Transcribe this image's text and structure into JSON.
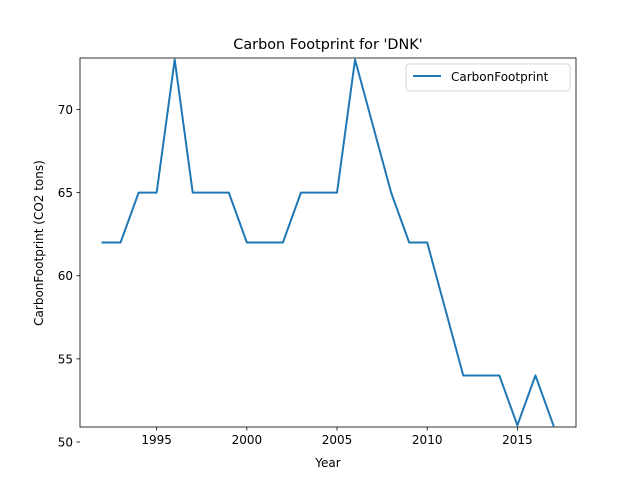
{
  "chart_data": {
    "type": "line",
    "title": "Carbon Footprint for 'DNK'",
    "xlabel": "Year",
    "ylabel": "CarbonFootprint (CO2 tons)",
    "xlim": [
      1990.75,
      2018.25
    ],
    "ylim": [
      50.9,
      73.1
    ],
    "xticks": [
      1995,
      2000,
      2005,
      2010,
      2015
    ],
    "yticks": [
      50,
      55,
      60,
      65,
      70
    ],
    "grid": false,
    "legend_position": "top-right",
    "series": [
      {
        "name": "CarbonFootprint",
        "color": "#1f77b4",
        "x": [
          1992,
          1993,
          1994,
          1995,
          1996,
          1997,
          1998,
          1999,
          2000,
          2001,
          2002,
          2003,
          2004,
          2005,
          2006,
          2007,
          2008,
          2009,
          2010,
          2011,
          2012,
          2013,
          2014,
          2015,
          2016,
          2017
        ],
        "y": [
          62,
          62,
          65,
          65,
          73,
          65,
          65,
          65,
          62,
          62,
          62,
          65,
          65,
          65,
          73,
          69,
          65,
          62,
          62,
          58,
          54,
          54,
          54,
          51,
          54,
          51
        ]
      }
    ]
  }
}
